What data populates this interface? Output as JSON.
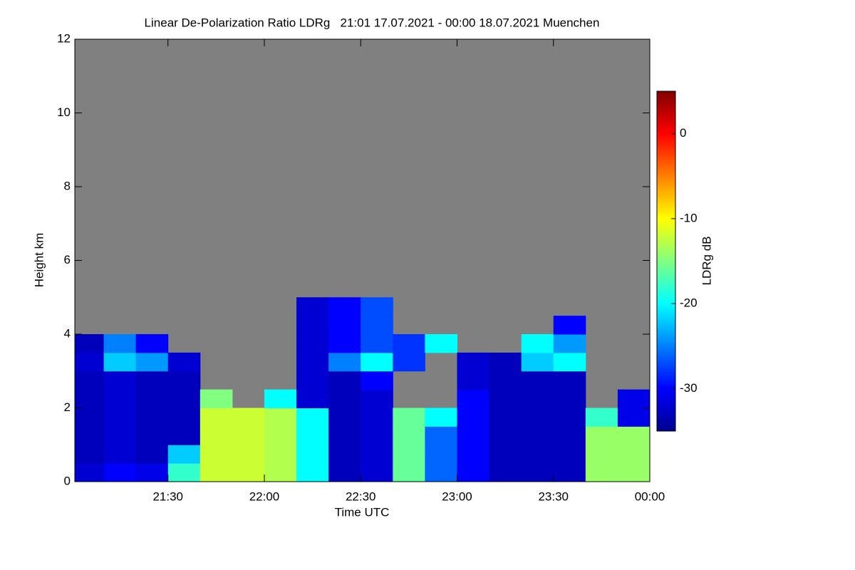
{
  "chart_data": {
    "type": "heatmap",
    "title": "Linear De-Polarization Ratio LDRg   21:01 17.07.2021 - 00:00 18.07.2021 Muenchen",
    "xlabel": "Time UTC",
    "ylabel": "Height km",
    "colorbar_label": "LDRg dB",
    "x": [
      "21:01",
      "21:10",
      "21:20",
      "21:30",
      "21:40",
      "21:50",
      "22:00",
      "22:10",
      "22:20",
      "22:30",
      "22:40",
      "22:50",
      "23:00",
      "23:10",
      "23:20",
      "23:30",
      "23:40",
      "23:50",
      "00:00"
    ],
    "y": [
      0,
      0.5,
      1,
      1.5,
      2,
      2.5,
      3,
      3.5,
      4,
      4.5,
      5,
      5.5,
      6
    ],
    "z": [
      [
        -32,
        -33,
        -33,
        -33,
        -33,
        -33,
        -32,
        -33,
        null,
        null,
        null,
        null
      ],
      [
        -30,
        -32,
        -32,
        -32,
        -32,
        -32,
        -22,
        -25,
        null,
        null,
        null,
        null
      ],
      [
        -31,
        -33,
        -33,
        -33,
        -33,
        -33,
        -24,
        -30,
        null,
        null,
        null,
        null
      ],
      [
        -18,
        -22,
        -33,
        -33,
        -33,
        -33,
        -32,
        null,
        null,
        null,
        null,
        null
      ],
      [
        -12,
        -12,
        -12,
        -12,
        -15,
        null,
        null,
        null,
        null,
        null,
        null,
        null
      ],
      [
        -12,
        -12,
        -12,
        -12,
        null,
        null,
        null,
        null,
        null,
        null,
        null,
        null
      ],
      [
        -13,
        -13,
        -13,
        -13,
        -20,
        null,
        null,
        null,
        null,
        null,
        null,
        null
      ],
      [
        -20,
        -20,
        -20,
        -20,
        -32,
        -32,
        -32,
        -32,
        -32,
        -32,
        null,
        null
      ],
      [
        -33,
        -33,
        -33,
        -33,
        -33,
        -33,
        -25,
        -30,
        -30,
        -30,
        null,
        null
      ],
      [
        -32,
        -32,
        -32,
        -32,
        -32,
        -30,
        -20,
        -27,
        -27,
        -27,
        null,
        null
      ],
      [
        -16,
        -16,
        -16,
        -16,
        null,
        null,
        -28,
        -28,
        null,
        null,
        null,
        null
      ],
      [
        -26,
        -26,
        -26,
        -20,
        null,
        null,
        null,
        -20,
        null,
        null,
        null,
        null
      ],
      [
        -30,
        -30,
        -30,
        -30,
        -30,
        -32,
        -32,
        null,
        null,
        null,
        null,
        null
      ],
      [
        -33,
        -33,
        -33,
        -33,
        -33,
        -33,
        -33,
        null,
        null,
        null,
        null,
        null
      ],
      [
        -33,
        -33,
        -33,
        -33,
        -33,
        -33,
        -22,
        -20,
        null,
        null,
        null,
        null
      ],
      [
        -33,
        -33,
        -33,
        -33,
        -33,
        -33,
        -20,
        -24,
        -30,
        null,
        null,
        null
      ],
      [
        -14,
        -14,
        -14,
        -18,
        null,
        null,
        null,
        null,
        null,
        null,
        null,
        null
      ],
      [
        -14,
        -14,
        -14,
        -31,
        -31,
        null,
        null,
        null,
        null,
        null,
        null,
        null
      ]
    ],
    "xlim": [
      "21:01",
      "00:00"
    ],
    "xticks": [
      "21:30",
      "22:00",
      "22:30",
      "23:00",
      "23:30",
      "00:00"
    ],
    "ylim": [
      0,
      12
    ],
    "yticks": [
      0,
      2,
      4,
      6,
      8,
      10,
      12
    ],
    "clim": [
      -35,
      5
    ],
    "cticks": [
      0,
      -10,
      -20,
      -30
    ],
    "colors": [
      "#00008f",
      "#0000ff",
      "#0080ff",
      "#00ffff",
      "#80ff80",
      "#ffff00",
      "#ff8000",
      "#ff0000",
      "#800000"
    ],
    "missing_color": "#808080"
  }
}
